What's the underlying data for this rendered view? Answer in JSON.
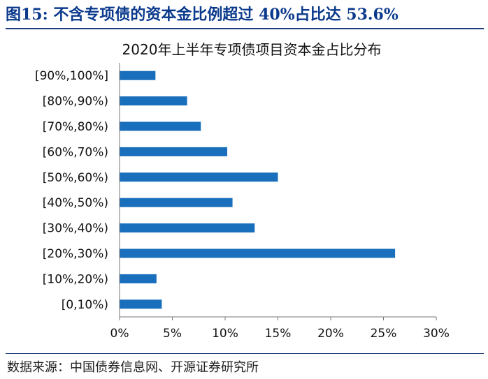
{
  "figure": {
    "number": "图15:",
    "title": "不含专项债的资本金比例超过 40%占比达 53.6%"
  },
  "source": "数据来源：中国债券信息网、开源证券研究所",
  "colors": {
    "bar": "#1a6fbd",
    "title": "#0b3a8c",
    "rule": "#1f3d7a"
  },
  "chart_data": {
    "type": "bar",
    "orientation": "horizontal",
    "title": "2020年上半年专项债项目资本金占比分布",
    "categories": [
      "[90%,100%]",
      "[80%,90%)",
      "[70%,80%)",
      "[60%,70%)",
      "[50%,60%)",
      "[40%,50%)",
      "[30%,40%)",
      "[20%,30%)",
      "[10%,20%)",
      "[0,10%)"
    ],
    "values": [
      3.4,
      6.4,
      7.7,
      10.2,
      15.0,
      10.7,
      12.8,
      26.1,
      3.5,
      4.0
    ],
    "xlim": [
      0,
      30
    ],
    "xticks": [
      "0%",
      "5%",
      "10%",
      "15%",
      "20%",
      "25%",
      "30%"
    ],
    "xlabel": "",
    "ylabel": "",
    "grid": false,
    "legend": "none"
  }
}
